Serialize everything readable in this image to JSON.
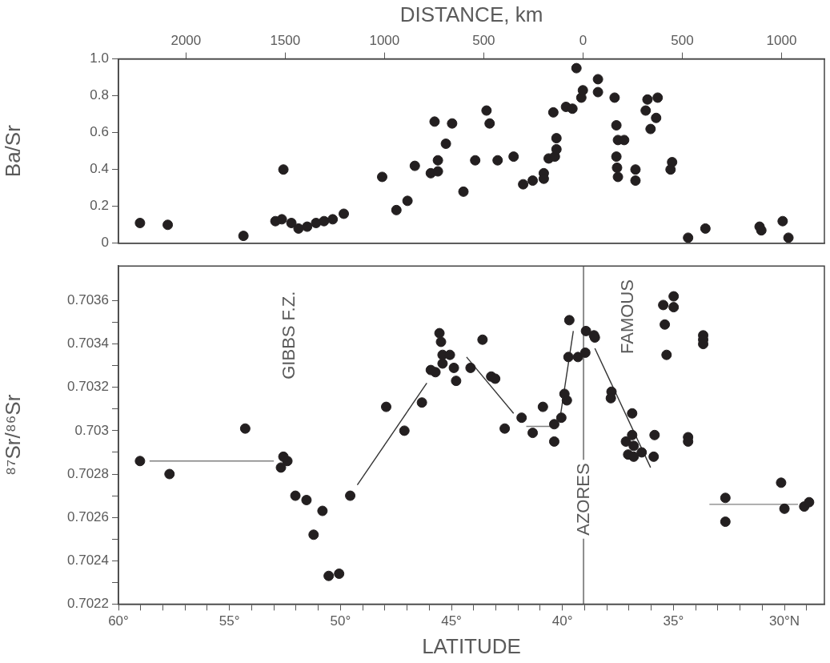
{
  "chart_data": [
    {
      "type": "scatter",
      "ylabel": "Ba/Sr",
      "x2label": "DISTANCE, km",
      "color": "#231f20",
      "marker": "circle",
      "tick_labels": "y",
      "xlim": [
        60,
        28.2
      ],
      "ylim": [
        0,
        1.0
      ],
      "yticks": [
        {
          "value": 0,
          "label": "0"
        },
        0.2,
        0.4,
        0.6,
        0.8,
        {
          "value": 1,
          "label": "1.0"
        }
      ],
      "x2lim": [
        2340,
        -1216
      ],
      "x2ticks": [
        2000,
        1500,
        1000,
        500,
        0,
        {
          "value": -500,
          "label": "500"
        },
        {
          "value": -1000,
          "label": "1000"
        }
      ],
      "x": [
        59.03,
        57.78,
        54.37,
        52.57,
        52.93,
        52.64,
        52.21,
        51.89,
        51.5,
        51.1,
        50.74,
        50.35,
        49.85,
        48.12,
        47.48,
        46.98,
        46.65,
        45.93,
        45.61,
        45.61,
        45.76,
        45.25,
        44.97,
        44.46,
        43.93,
        43.42,
        43.28,
        42.92,
        42.2,
        41.77,
        41.34,
        40.84,
        40.84,
        40.62,
        40.34,
        40.27,
        40.27,
        40.41,
        39.84,
        39.55,
        39.37,
        39.15,
        39.08,
        38.4,
        38.4,
        37.65,
        37.57,
        37.5,
        37.22,
        37.57,
        37.54,
        37.5,
        36.71,
        36.71,
        36.17,
        35.71,
        36.25,
        35.78,
        36.03,
        35.06,
        35.13,
        34.34,
        33.56,
        31.12,
        31.04,
        30.08,
        29.82
      ],
      "values": [
        0.11,
        0.1,
        0.04,
        0.4,
        0.12,
        0.13,
        0.11,
        0.08,
        0.09,
        0.11,
        0.12,
        0.13,
        0.16,
        0.36,
        0.18,
        0.23,
        0.42,
        0.38,
        0.39,
        0.45,
        0.66,
        0.54,
        0.65,
        0.28,
        0.45,
        0.72,
        0.65,
        0.45,
        0.47,
        0.32,
        0.34,
        0.38,
        0.35,
        0.46,
        0.47,
        0.51,
        0.57,
        0.71,
        0.74,
        0.73,
        0.95,
        0.79,
        0.83,
        0.89,
        0.82,
        0.79,
        0.64,
        0.56,
        0.56,
        0.47,
        0.41,
        0.36,
        0.4,
        0.34,
        0.78,
        0.79,
        0.72,
        0.68,
        0.62,
        0.44,
        0.4,
        0.03,
        0.08,
        0.09,
        0.07,
        0.12,
        0.03
      ]
    },
    {
      "type": "scatter",
      "xlabel": "LATITUDE",
      "ylabel": "⁸⁷Sr/⁸⁶Sr",
      "marker": "circle",
      "xlim": [
        60,
        28.2
      ],
      "ylim": [
        0.7022,
        0.70376
      ],
      "xticks": [
        {
          "value": 60,
          "label": "60°"
        },
        {
          "value": 59,
          "label": null
        },
        {
          "value": 58,
          "label": null
        },
        {
          "value": 57,
          "label": null
        },
        {
          "value": 56,
          "label": null
        },
        {
          "value": 55,
          "label": "55°"
        },
        {
          "value": 54,
          "label": null
        },
        {
          "value": 53,
          "label": null
        },
        {
          "value": 52,
          "label": null
        },
        {
          "value": 51,
          "label": null
        },
        {
          "value": 50,
          "label": "50°"
        },
        {
          "value": 49,
          "label": null
        },
        {
          "value": 48,
          "label": null
        },
        {
          "value": 47,
          "label": null
        },
        {
          "value": 46,
          "label": null
        },
        {
          "value": 45,
          "label": "45°"
        },
        {
          "value": 44,
          "label": null
        },
        {
          "value": 43,
          "label": null
        },
        {
          "value": 42,
          "label": null
        },
        {
          "value": 41,
          "label": null
        },
        {
          "value": 40,
          "label": "40°"
        },
        {
          "value": 39,
          "label": null
        },
        {
          "value": 38,
          "label": null
        },
        {
          "value": 37,
          "label": null
        },
        {
          "value": 36,
          "label": null
        },
        {
          "value": 35,
          "label": "35°"
        },
        {
          "value": 34,
          "label": null
        },
        {
          "value": 33,
          "label": null
        },
        {
          "value": 32,
          "label": null
        },
        {
          "value": 31,
          "label": null
        },
        {
          "value": 30,
          "label": "30°N"
        },
        {
          "value": 29,
          "label": null
        }
      ],
      "yticks": [
        0.7022,
        {
          "value": 0.7023,
          "label": null
        },
        0.7024,
        {
          "value": 0.7025,
          "label": null
        },
        0.7026,
        {
          "value": 0.7027,
          "label": null
        },
        0.7028,
        {
          "value": 0.7029,
          "label": null
        },
        0.703,
        {
          "value": 0.7031,
          "label": null
        },
        0.7032,
        {
          "value": 0.7033,
          "label": null
        },
        0.7034,
        {
          "value": 0.7035,
          "label": null
        },
        0.7036
      ],
      "ref_lines": [
        {
          "axis": "x",
          "value": 39.05,
          "label": "AZORES",
          "color": "#8c8c8c"
        }
      ],
      "annotations": [
        "GIBBS F.Z.",
        "FAMOUS"
      ],
      "series": [
        {
          "color": "#231f20",
          "x": [
            59.03,
            57.7,
            54.29,
            52.57,
            52.39,
            52.68,
            52.03,
            51.53,
            50.81,
            51.21,
            50.53,
            50.06,
            49.56,
            47.94,
            47.12,
            46.33,
            45.93,
            45.72,
            45.54,
            45.47,
            45.4,
            45.07,
            45.4,
            44.89,
            44.79,
            44.14,
            43.6,
            43.21,
            43.03,
            42.6,
            41.84,
            41.34,
            40.88,
            40.37,
            40.37,
            40.05,
            39.91,
            39.8,
            39.69,
            39.73,
            39.3,
            38.97,
            38.94,
            38.54,
            38.58,
            37.79,
            37.82,
            36.86,
            37.14,
            36.86,
            37.04,
            36.79,
            36.79,
            36.43,
            35.85,
            35.89,
            35.46,
            34.99,
            34.99,
            35.39,
            35.31,
            34.34,
            34.34,
            33.66,
            33.66,
            33.66,
            32.66,
            32.66,
            30.15,
            30.0,
            29.11,
            28.89
          ],
          "values": [
            0.70286,
            0.7028,
            0.70301,
            0.70288,
            0.70286,
            0.70283,
            0.7027,
            0.70268,
            0.70263,
            0.70252,
            0.70233,
            0.70234,
            0.7027,
            0.70311,
            0.703,
            0.70313,
            0.70328,
            0.70327,
            0.70345,
            0.70341,
            0.70335,
            0.70335,
            0.70331,
            0.70329,
            0.70323,
            0.70329,
            0.70342,
            0.70325,
            0.70324,
            0.70301,
            0.70306,
            0.70299,
            0.70311,
            0.70295,
            0.70303,
            0.70306,
            0.70317,
            0.70314,
            0.70351,
            0.70334,
            0.70334,
            0.70336,
            0.70346,
            0.70343,
            0.70344,
            0.70318,
            0.70315,
            0.70308,
            0.70295,
            0.70298,
            0.70289,
            0.70288,
            0.70293,
            0.7029,
            0.70298,
            0.70288,
            0.70358,
            0.70362,
            0.70357,
            0.70349,
            0.70335,
            0.70297,
            0.70295,
            0.70344,
            0.70342,
            0.7034,
            0.70269,
            0.70258,
            0.70276,
            0.70264,
            0.70265,
            0.70267
          ]
        },
        {
          "type": "line",
          "marker": "none",
          "color": "#808080",
          "x": [
            58.6,
            53.0
          ],
          "values": [
            0.70286,
            0.70286
          ]
        },
        {
          "type": "line",
          "marker": "none",
          "color": "#333333",
          "x": [
            49.24,
            46.11
          ],
          "values": [
            0.70275,
            0.70322
          ]
        },
        {
          "type": "line",
          "marker": "none",
          "color": "#333333",
          "x": [
            44.32,
            42.2
          ],
          "values": [
            0.70334,
            0.70308
          ]
        },
        {
          "type": "line",
          "marker": "none",
          "color": "#808080",
          "x": [
            41.63,
            40.52
          ],
          "values": [
            0.70302,
            0.70302
          ]
        },
        {
          "type": "line",
          "marker": "none",
          "color": "#333333",
          "x": [
            40.09,
            39.51
          ],
          "values": [
            0.70307,
            0.70346
          ]
        },
        {
          "type": "line",
          "marker": "none",
          "color": "#333333",
          "x": [
            38.54,
            36.03
          ],
          "values": [
            0.70338,
            0.70283
          ]
        },
        {
          "type": "line",
          "marker": "none",
          "color": "#808080",
          "x": [
            33.38,
            29.39
          ],
          "values": [
            0.70266,
            0.70266
          ]
        }
      ]
    }
  ]
}
